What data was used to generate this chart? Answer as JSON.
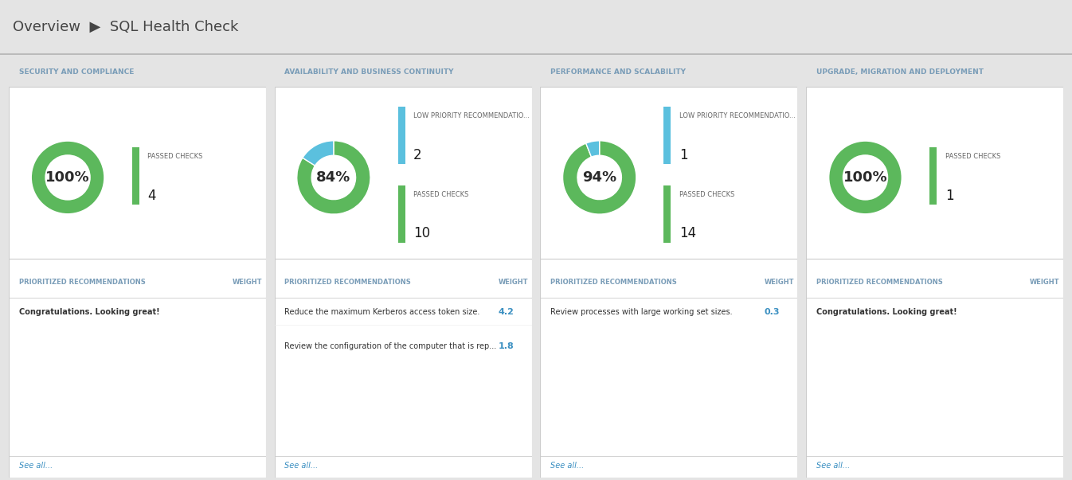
{
  "title_breadcrumb": "Overview  ▶  SQL Health Check",
  "background_color": "#e4e4e4",
  "card_background": "#ffffff",
  "header_bg": "#d8d8d8",
  "panels": [
    {
      "title": "SECURITY AND COMPLIANCE",
      "percent_label": "100%",
      "donut_colors": [
        "#5cb85c",
        "#e0e0e0"
      ],
      "donut_values": [
        100,
        0
      ],
      "legend_items": [
        {
          "color": "#5cb85c",
          "label": "PASSED CHECKS",
          "value": "4"
        }
      ],
      "recommendations": [
        {
          "text": "Congratulations. Looking great!",
          "weight": null,
          "bold": true
        }
      ],
      "see_all": "See all..."
    },
    {
      "title": "AVAILABILITY AND BUSINESS CONTINUITY",
      "percent_label": "84%",
      "donut_colors": [
        "#5cb85c",
        "#5bc0de"
      ],
      "donut_values": [
        84,
        16
      ],
      "legend_items": [
        {
          "color": "#5bc0de",
          "label": "LOW PRIORITY RECOMMENDATIO...",
          "value": "2"
        },
        {
          "color": "#5cb85c",
          "label": "PASSED CHECKS",
          "value": "10"
        }
      ],
      "recommendations": [
        {
          "text": "Reduce the maximum Kerberos access token size.",
          "weight": "4.2",
          "bold": false
        },
        {
          "text": "Review the configuration of the computer that is rep...",
          "weight": "1.8",
          "bold": false
        }
      ],
      "see_all": "See all..."
    },
    {
      "title": "PERFORMANCE AND SCALABILITY",
      "percent_label": "94%",
      "donut_colors": [
        "#5cb85c",
        "#5bc0de"
      ],
      "donut_values": [
        94,
        6
      ],
      "legend_items": [
        {
          "color": "#5bc0de",
          "label": "LOW PRIORITY RECOMMENDATIO...",
          "value": "1"
        },
        {
          "color": "#5cb85c",
          "label": "PASSED CHECKS",
          "value": "14"
        }
      ],
      "recommendations": [
        {
          "text": "Review processes with large working set sizes.",
          "weight": "0.3",
          "bold": false
        }
      ],
      "see_all": "See all..."
    },
    {
      "title": "UPGRADE, MIGRATION AND DEPLOYMENT",
      "percent_label": "100%",
      "donut_colors": [
        "#5cb85c",
        "#e0e0e0"
      ],
      "donut_values": [
        100,
        0
      ],
      "legend_items": [
        {
          "color": "#5cb85c",
          "label": "PASSED CHECKS",
          "value": "1"
        }
      ],
      "recommendations": [
        {
          "text": "Congratulations. Looking great!",
          "weight": null,
          "bold": true
        }
      ],
      "see_all": "See all..."
    }
  ],
  "section_title_color": "#7a9db8",
  "breadcrumb_color": "#444444",
  "arrow_color": "#aaaaaa",
  "see_all_color": "#3a8fc1",
  "weight_color": "#3a8fc1",
  "rec_header_color": "#7a9db8",
  "border_color": "#cccccc",
  "separator_color": "#cccccc",
  "header_bottom_border": "#bbbbbb",
  "donut_inner_color": "#ffffff",
  "percent_font_size": 13,
  "legend_label_font_size": 6,
  "legend_value_font_size": 12,
  "rec_header_font_size": 6,
  "rec_text_font_size": 7,
  "weight_font_size": 8,
  "see_all_font_size": 7,
  "panel_title_font_size": 6.5
}
